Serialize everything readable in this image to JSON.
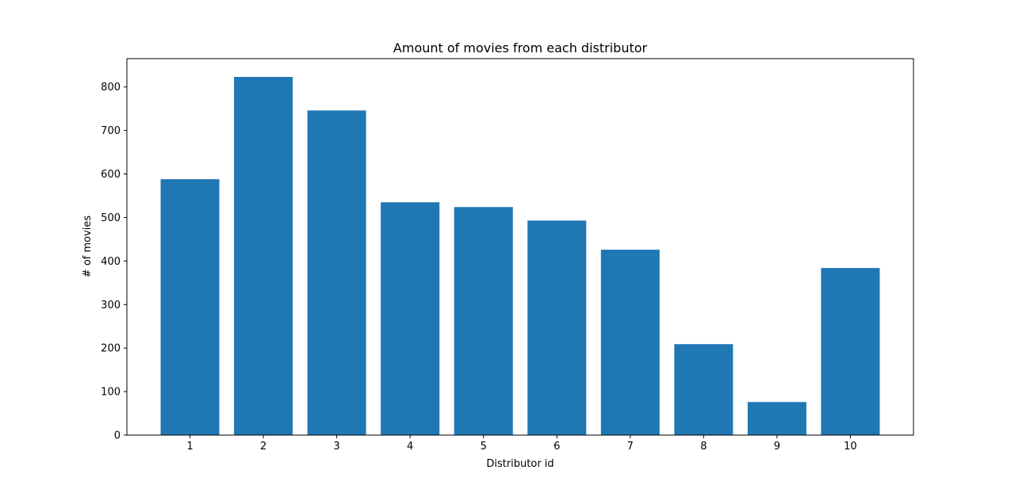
{
  "chart_data": {
    "type": "bar",
    "title": "Amount of movies from each distributor",
    "xlabel": "Distributor id",
    "ylabel": "# of movies",
    "categories": [
      "1",
      "2",
      "3",
      "4",
      "5",
      "6",
      "7",
      "8",
      "9",
      "10"
    ],
    "values": [
      588,
      823,
      746,
      535,
      524,
      493,
      426,
      209,
      76,
      384
    ],
    "ylim": [
      0,
      865
    ],
    "yticks": [
      0,
      100,
      200,
      300,
      400,
      500,
      600,
      700,
      800
    ],
    "bar_color": "#1f77b4",
    "grid": false,
    "legend": "none"
  }
}
